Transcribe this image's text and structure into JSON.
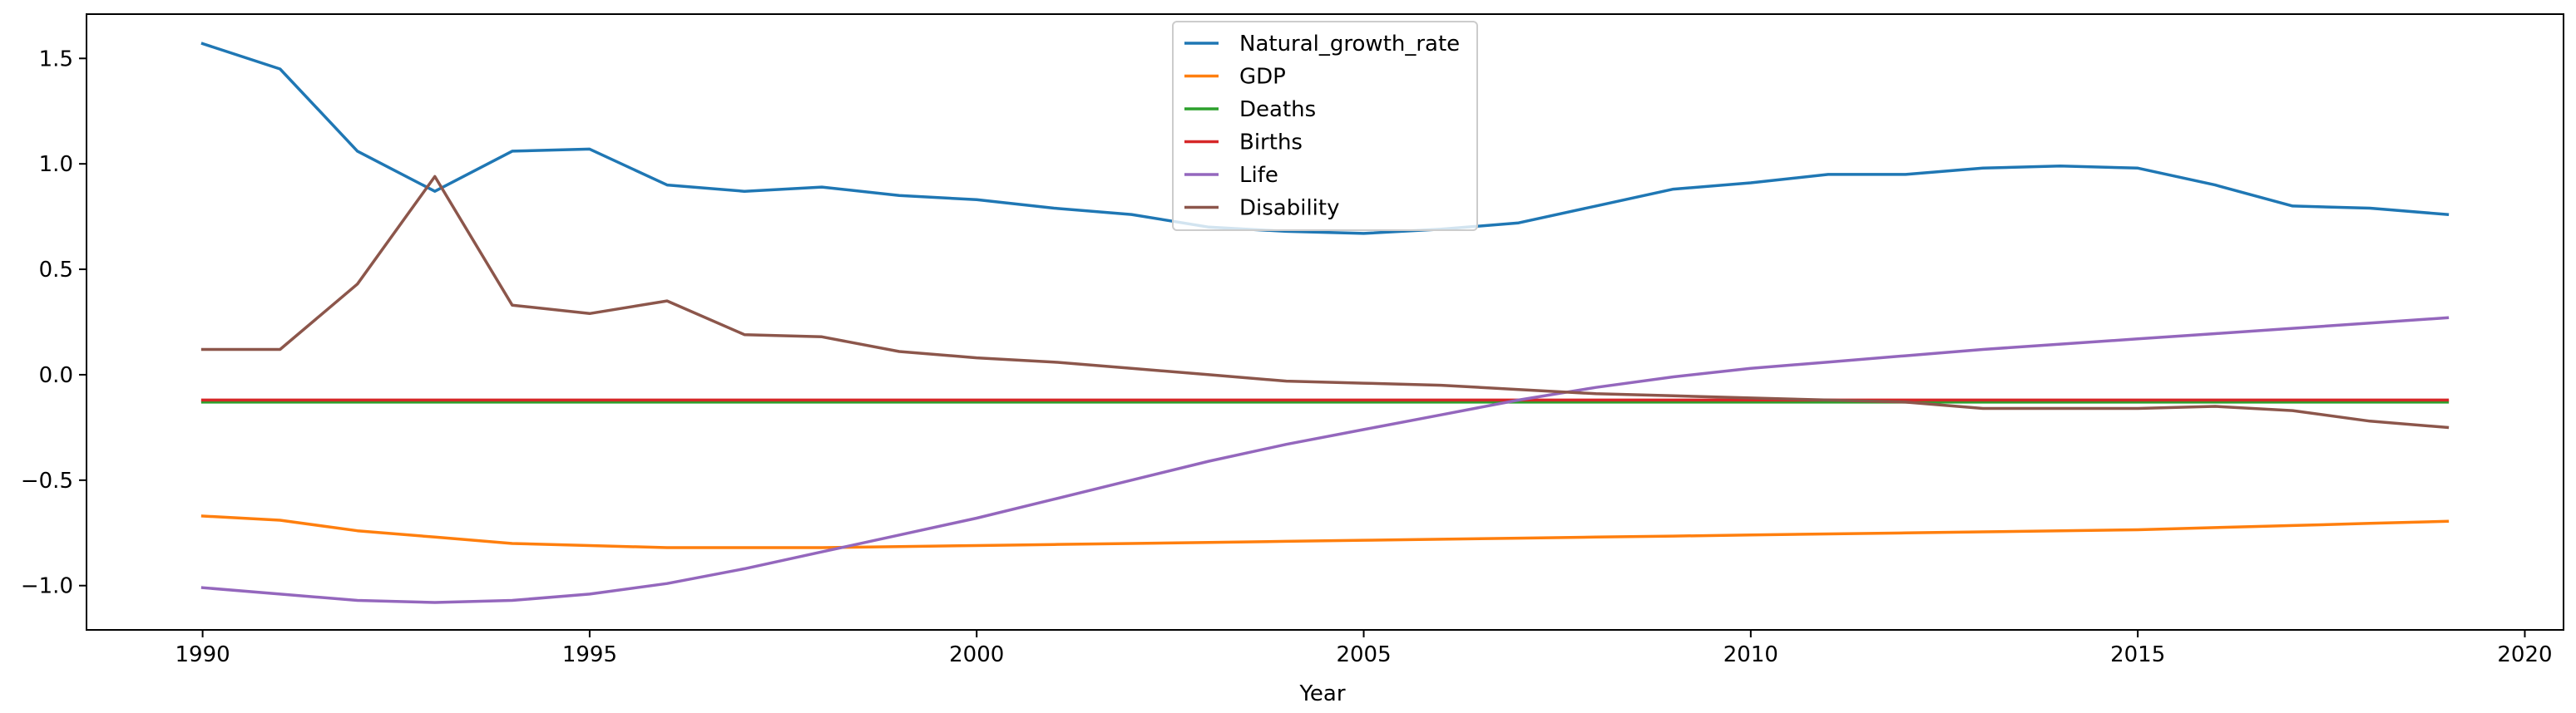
{
  "chart_data": {
    "type": "line",
    "title": "",
    "xlabel": "Year",
    "ylabel": "",
    "xlim": [
      1988.5,
      2020.5
    ],
    "ylim": [
      -1.21,
      1.71
    ],
    "x_ticks": [
      1990,
      1995,
      2000,
      2005,
      2010,
      2015,
      2020
    ],
    "y_ticks": [
      -1.0,
      -0.5,
      0.0,
      0.5,
      1.0,
      1.5
    ],
    "y_tick_labels": [
      "−1.0",
      "−0.5",
      "0.0",
      "0.5",
      "1.0",
      "1.5"
    ],
    "grid": false,
    "legend": "top-center",
    "x": [
      1990,
      1991,
      1992,
      1993,
      1994,
      1995,
      1996,
      1997,
      1998,
      1999,
      2000,
      2001,
      2002,
      2003,
      2004,
      2005,
      2006,
      2007,
      2008,
      2009,
      2010,
      2011,
      2012,
      2013,
      2014,
      2015,
      2016,
      2017,
      2018,
      2019
    ],
    "series": [
      {
        "name": "Natural_growth_rate",
        "color": "#1f77b4",
        "values": [
          1.57,
          1.45,
          1.06,
          0.87,
          1.06,
          1.07,
          0.9,
          0.87,
          0.89,
          0.85,
          0.83,
          0.79,
          0.76,
          0.7,
          0.68,
          0.67,
          0.69,
          0.72,
          0.8,
          0.88,
          0.91,
          0.95,
          0.95,
          0.98,
          0.99,
          0.98,
          0.9,
          0.8,
          0.79,
          0.76
        ]
      },
      {
        "name": "GDP",
        "color": "#ff7f0e",
        "values": [
          -0.67,
          -0.69,
          -0.74,
          -0.77,
          -0.8,
          -0.81,
          -0.82,
          -0.82,
          -0.82,
          -0.815,
          -0.81,
          -0.805,
          -0.8,
          -0.795,
          -0.79,
          -0.785,
          -0.78,
          -0.775,
          -0.77,
          -0.765,
          -0.76,
          -0.755,
          -0.75,
          -0.745,
          -0.74,
          -0.735,
          -0.725,
          -0.715,
          -0.705,
          -0.695
        ]
      },
      {
        "name": "Deaths",
        "color": "#2ca02c",
        "values": [
          -0.13,
          -0.13,
          -0.13,
          -0.13,
          -0.13,
          -0.13,
          -0.13,
          -0.13,
          -0.13,
          -0.13,
          -0.13,
          -0.13,
          -0.13,
          -0.13,
          -0.13,
          -0.13,
          -0.13,
          -0.13,
          -0.13,
          -0.13,
          -0.13,
          -0.13,
          -0.13,
          -0.13,
          -0.13,
          -0.13,
          -0.13,
          -0.13,
          -0.13,
          -0.13
        ]
      },
      {
        "name": "Births",
        "color": "#d62728",
        "values": [
          -0.12,
          -0.12,
          -0.12,
          -0.12,
          -0.12,
          -0.12,
          -0.12,
          -0.12,
          -0.12,
          -0.12,
          -0.12,
          -0.12,
          -0.12,
          -0.12,
          -0.12,
          -0.12,
          -0.12,
          -0.12,
          -0.12,
          -0.12,
          -0.12,
          -0.12,
          -0.12,
          -0.12,
          -0.12,
          -0.12,
          -0.12,
          -0.12,
          -0.12,
          -0.12
        ]
      },
      {
        "name": "Life",
        "color": "#9467bd",
        "values": [
          -1.01,
          -1.04,
          -1.07,
          -1.08,
          -1.07,
          -1.04,
          -0.99,
          -0.92,
          -0.84,
          -0.76,
          -0.68,
          -0.59,
          -0.5,
          -0.41,
          -0.33,
          -0.26,
          -0.19,
          -0.12,
          -0.06,
          -0.01,
          0.03,
          0.06,
          0.09,
          0.12,
          0.145,
          0.17,
          0.195,
          0.22,
          0.245,
          0.27
        ]
      },
      {
        "name": "Disability",
        "color": "#8c564b",
        "values": [
          0.12,
          0.12,
          0.43,
          0.94,
          0.33,
          0.29,
          0.35,
          0.19,
          0.18,
          0.11,
          0.08,
          0.06,
          0.03,
          0.0,
          -0.03,
          -0.04,
          -0.05,
          -0.07,
          -0.09,
          -0.1,
          -0.11,
          -0.12,
          -0.13,
          -0.16,
          -0.16,
          -0.16,
          -0.15,
          -0.17,
          -0.22,
          -0.25
        ]
      }
    ]
  }
}
